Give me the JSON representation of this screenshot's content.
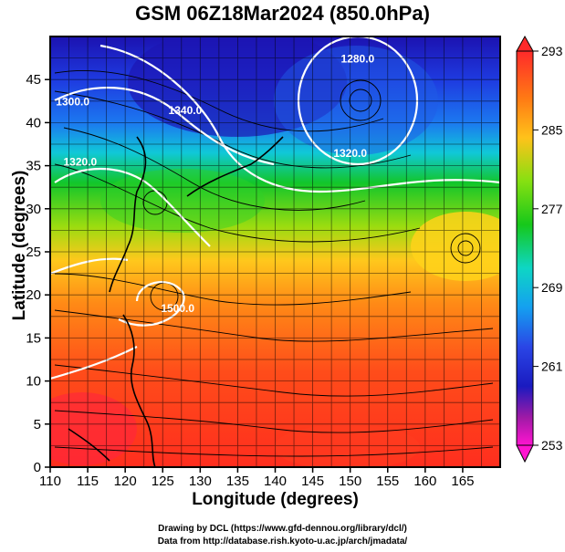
{
  "figure": {
    "title": "GSM 06Z18Mar2024 (850.0hPa)",
    "xlabel": "Longitude (degrees)",
    "ylabel": "Latitude  (degrees)",
    "credit_line1": "Drawing by DCL (https://www.gfd-dennou.org/library/dcl/)",
    "credit_line2": "Data from http://database.rish.kyoto-u.ac.jp/arch/jmadata/"
  },
  "map": {
    "lon_range": [
      110,
      170
    ],
    "lat_range": [
      0,
      50
    ],
    "lon_ticks": [
      110,
      115,
      120,
      125,
      130,
      135,
      140,
      145,
      150,
      155,
      160,
      165
    ],
    "lat_ticks": [
      0,
      5,
      10,
      15,
      20,
      25,
      30,
      35,
      40,
      45
    ],
    "grid": true,
    "contour_labels": [
      {
        "text": "1280.0",
        "lon": 151,
        "lat": 47
      },
      {
        "text": "1320.0",
        "lon": 150,
        "lat": 36
      },
      {
        "text": "1340.0",
        "lon": 128,
        "lat": 41
      },
      {
        "text": "1320.0",
        "lon": 114,
        "lat": 35
      },
      {
        "text": "1500.0",
        "lon": 127,
        "lat": 18
      },
      {
        "text": "1300.0",
        "lon": 113,
        "lat": 42
      }
    ]
  },
  "colorbar": {
    "min": 253,
    "max": 293,
    "tick_labels": [
      "293",
      "285",
      "277",
      "269",
      "261",
      "253"
    ],
    "colors": [
      "#ff2a2a",
      "#ff7a14",
      "#ffc21a",
      "#86e011",
      "#16c81a",
      "#0ed6c4",
      "#14a0f0",
      "#2a46e6",
      "#1a1ac0",
      "#a01aa6",
      "#ff14d0"
    ]
  }
}
